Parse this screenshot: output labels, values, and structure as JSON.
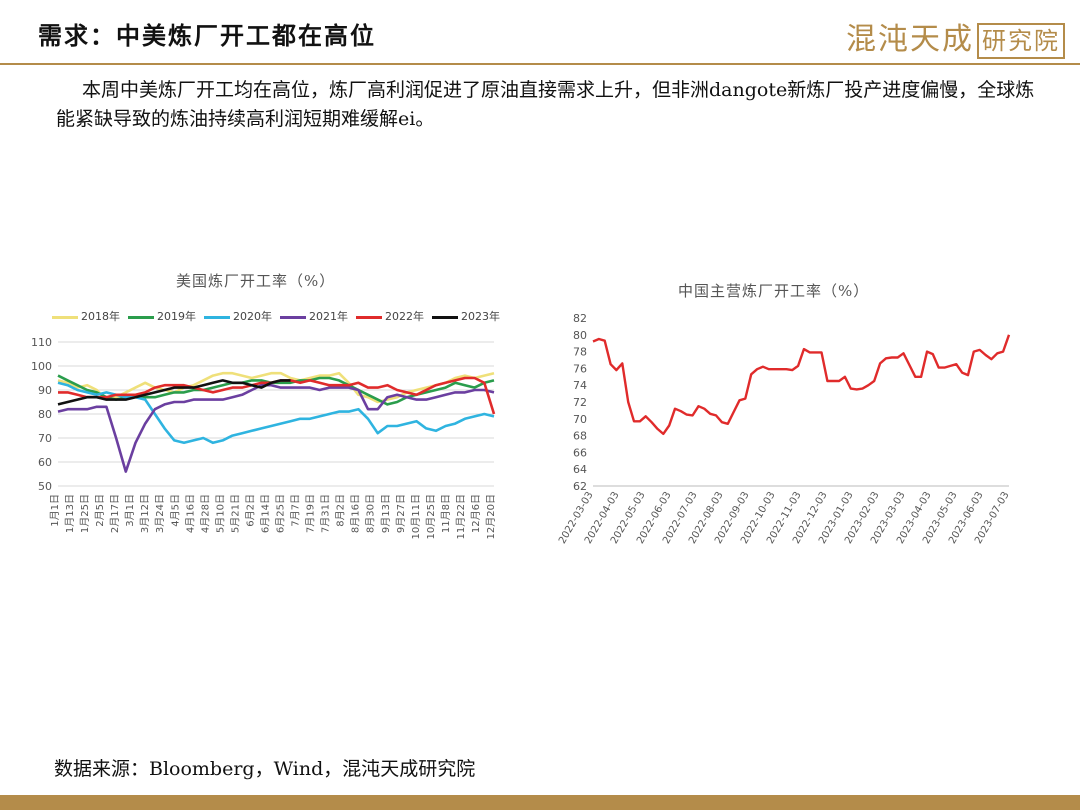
{
  "header": {
    "title": "需求：中美炼厂开工都在高位",
    "logo_text": "混沌天成",
    "logo_boxed": "研究院"
  },
  "body_text": "本周中美炼厂开工均在高位，炼厂高利润促进了原油直接需求上升，但非洲dangote新炼厂投产进度偏慢，全球炼能紧缺导致的炼油持续高利润短期难缓解ei。",
  "source_text": "数据来源：Bloomberg，Wind，混沌天成研究院",
  "colors": {
    "accent": "#b48c4a"
  },
  "chart_data": [
    {
      "type": "line",
      "title": "美国炼厂开工率（%）",
      "ylim": [
        50,
        110
      ],
      "yticks": [
        50,
        60,
        70,
        80,
        90,
        100,
        110
      ],
      "grid": true,
      "legend_position": "top",
      "x_labels": [
        "1月1日",
        "1月13日",
        "1月25日",
        "2月5日",
        "2月17日",
        "3月1日",
        "3月12日",
        "3月24日",
        "4月5日",
        "4月16日",
        "4月28日",
        "5月10日",
        "5月21日",
        "6月2日",
        "6月14日",
        "6月25日",
        "7月7日",
        "7月19日",
        "7月31日",
        "8月2日",
        "8月16日",
        "8月30日",
        "9月13日",
        "9月27日",
        "10月11日",
        "10月25日",
        "11月8日",
        "11月22日",
        "12月6日",
        "12月20日"
      ],
      "series": [
        {
          "name": "2018年",
          "color": "#efe07a",
          "values": [
            94,
            93,
            91,
            92,
            90,
            86,
            87,
            89,
            91,
            93,
            91,
            90,
            89,
            91,
            92,
            94,
            96,
            97,
            97,
            96,
            95,
            96,
            97,
            97,
            95,
            94,
            95,
            96,
            96,
            97,
            93,
            88,
            87,
            85,
            86,
            87,
            89,
            90,
            91,
            92,
            93,
            95,
            96,
            95,
            96,
            97
          ]
        },
        {
          "name": "2019年",
          "color": "#2a9d4c",
          "values": [
            96,
            94,
            92,
            90,
            89,
            87,
            86,
            87,
            88,
            87,
            87,
            88,
            89,
            89,
            90,
            90,
            91,
            92,
            93,
            93,
            94,
            94,
            93,
            93,
            93,
            94,
            94,
            95,
            95,
            94,
            92,
            90,
            88,
            86,
            84,
            85,
            87,
            88,
            89,
            90,
            91,
            93,
            92,
            91,
            93,
            94
          ]
        },
        {
          "name": "2020年",
          "color": "#2fb4e0",
          "values": [
            93,
            92,
            90,
            89,
            88,
            89,
            88,
            87,
            87,
            86,
            80,
            74,
            69,
            68,
            69,
            70,
            68,
            69,
            71,
            72,
            73,
            74,
            75,
            76,
            77,
            78,
            78,
            79,
            80,
            81,
            81,
            82,
            78,
            72,
            75,
            75,
            76,
            77,
            74,
            73,
            75,
            76,
            78,
            79,
            80,
            79
          ]
        },
        {
          "name": "2021年",
          "color": "#6b3fa0",
          "values": [
            81,
            82,
            82,
            82,
            83,
            83,
            70,
            56,
            68,
            76,
            82,
            84,
            85,
            85,
            86,
            86,
            86,
            86,
            87,
            88,
            90,
            92,
            92,
            91,
            91,
            91,
            91,
            90,
            91,
            91,
            91,
            90,
            82,
            82,
            87,
            88,
            87,
            86,
            86,
            87,
            88,
            89,
            89,
            90,
            90,
            89
          ]
        },
        {
          "name": "2022年",
          "color": "#e02b2b",
          "values": [
            89,
            89,
            88,
            87,
            87,
            87,
            88,
            88,
            88,
            89,
            91,
            92,
            92,
            92,
            91,
            90,
            89,
            90,
            91,
            91,
            92,
            93,
            93,
            94,
            94,
            93,
            94,
            93,
            92,
            92,
            92,
            93,
            91,
            91,
            92,
            90,
            89,
            88,
            90,
            92,
            93,
            94,
            95,
            95,
            93,
            80
          ]
        },
        {
          "name": "2023年",
          "color": "#111111",
          "values": [
            84,
            85,
            86,
            87,
            87,
            86,
            86,
            86,
            87,
            88,
            89,
            90,
            91,
            91,
            91,
            92,
            93,
            94,
            93,
            93,
            92,
            91,
            93,
            94,
            94
          ]
        }
      ]
    },
    {
      "type": "line",
      "title": "中国主营炼厂开工率（%）",
      "ylim": [
        62,
        82
      ],
      "yticks": [
        62,
        64,
        66,
        68,
        70,
        72,
        74,
        76,
        78,
        80,
        82
      ],
      "grid": false,
      "x_labels": [
        "2022-03-03",
        "2022-04-03",
        "2022-05-03",
        "2022-06-03",
        "2022-07-03",
        "2022-08-03",
        "2022-09-03",
        "2022-10-03",
        "2022-11-03",
        "2022-12-03",
        "2023-01-03",
        "2023-02-03",
        "2023-03-03",
        "2023-04-03",
        "2023-05-03",
        "2023-06-03",
        "2023-07-03"
      ],
      "series": [
        {
          "name": "",
          "color": "#e02b2b",
          "values": [
            79.2,
            79.5,
            79.3,
            76.5,
            75.8,
            76.6,
            72.0,
            69.7,
            69.7,
            70.3,
            69.6,
            68.8,
            68.2,
            69.2,
            71.2,
            70.9,
            70.5,
            70.4,
            71.5,
            71.2,
            70.6,
            70.4,
            69.6,
            69.4,
            70.8,
            72.2,
            72.4,
            75.3,
            75.9,
            76.2,
            75.9,
            75.9,
            75.9,
            75.9,
            75.8,
            76.3,
            78.3,
            77.9,
            77.9,
            77.9,
            74.5,
            74.5,
            74.5,
            75.0,
            73.6,
            73.5,
            73.6,
            74.0,
            74.5,
            76.6,
            77.2,
            77.3,
            77.3,
            77.8,
            76.4,
            75.0,
            75.0,
            78.0,
            77.7,
            76.1,
            76.1,
            76.3,
            76.5,
            75.5,
            75.2,
            78.0,
            78.2,
            77.6,
            77.1,
            77.8,
            78.0,
            80.0
          ]
        }
      ]
    }
  ]
}
